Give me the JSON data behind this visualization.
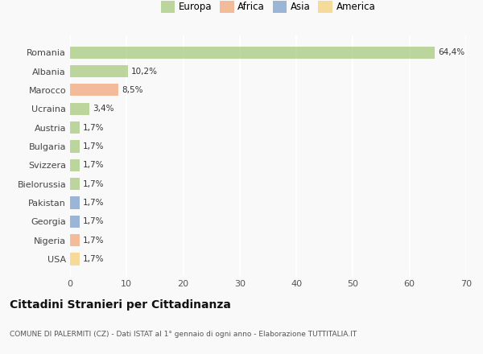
{
  "countries": [
    "Romania",
    "Albania",
    "Marocco",
    "Ucraina",
    "Austria",
    "Bulgaria",
    "Svizzera",
    "Bielorussia",
    "Pakistan",
    "Georgia",
    "Nigeria",
    "USA"
  ],
  "values": [
    64.4,
    10.2,
    8.5,
    3.4,
    1.7,
    1.7,
    1.7,
    1.7,
    1.7,
    1.7,
    1.7,
    1.7
  ],
  "labels": [
    "64,4%",
    "10,2%",
    "8,5%",
    "3,4%",
    "1,7%",
    "1,7%",
    "1,7%",
    "1,7%",
    "1,7%",
    "1,7%",
    "1,7%",
    "1,7%"
  ],
  "colors": [
    "#a8c97f",
    "#a8c97f",
    "#f0a87a",
    "#a8c97f",
    "#a8c97f",
    "#a8c97f",
    "#a8c97f",
    "#a8c97f",
    "#7b9ec9",
    "#7b9ec9",
    "#f0a87a",
    "#f5d07a"
  ],
  "legend_labels": [
    "Europa",
    "Africa",
    "Asia",
    "America"
  ],
  "legend_colors": [
    "#a8c97f",
    "#f0a87a",
    "#7b9ec9",
    "#f5d07a"
  ],
  "title": "Cittadini Stranieri per Cittadinanza",
  "subtitle": "COMUNE DI PALERMITI (CZ) - Dati ISTAT al 1° gennaio di ogni anno - Elaborazione TUTTITALIA.IT",
  "xlim": [
    0,
    70
  ],
  "xticks": [
    0,
    10,
    20,
    30,
    40,
    50,
    60,
    70
  ],
  "background_color": "#f9f9f9",
  "grid_color": "#ffffff",
  "bar_alpha": 0.75
}
